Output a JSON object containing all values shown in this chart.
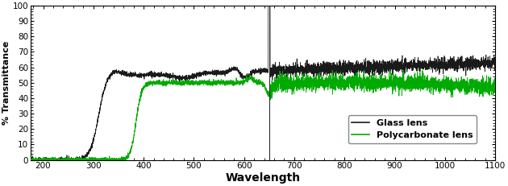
{
  "title": "",
  "xlabel": "Wavelength",
  "ylabel": "% Transmittance",
  "xlim": [
    175,
    1100
  ],
  "ylim": [
    0,
    100
  ],
  "xticks": [
    200,
    300,
    400,
    500,
    600,
    700,
    800,
    900,
    1000,
    1100
  ],
  "yticks": [
    0,
    10,
    20,
    30,
    40,
    50,
    60,
    70,
    80,
    90,
    100
  ],
  "glass_color": "#1a1a1a",
  "poly_color": "#00aa00",
  "legend_labels": [
    "Glass lens",
    "Polycarbonate lens"
  ],
  "background_color": "#ffffff",
  "glass_base": 55,
  "glass_rise_start": 290,
  "glass_rise_end": 330,
  "poly_base": 50,
  "poly_rise_start": 360,
  "poly_rise_end": 410,
  "spike_x": 650,
  "figsize": [
    6.3,
    2.31
  ],
  "dpi": 100
}
